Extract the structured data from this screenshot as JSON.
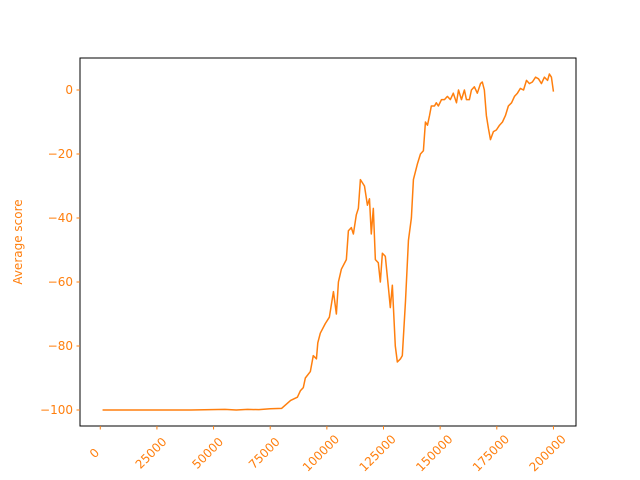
{
  "chart_data": {
    "type": "line",
    "ylabel": "Average score",
    "color": "#ff7f0e",
    "tick_color": "#ff7f0e",
    "x": [
      1000,
      20000,
      40000,
      55000,
      60000,
      65000,
      70000,
      75000,
      80000,
      84000,
      87000,
      88300,
      89600,
      90500,
      92700,
      94000,
      95400,
      96000,
      97100,
      99300,
      101100,
      102000,
      102900,
      104200,
      105100,
      106400,
      108600,
      109500,
      110800,
      111700,
      113000,
      113900,
      114800,
      116600,
      117900,
      118800,
      119600,
      120500,
      121400,
      122700,
      123600,
      124500,
      125800,
      127200,
      128000,
      128900,
      130200,
      131100,
      132500,
      133300,
      134700,
      136000,
      137300,
      138200,
      140000,
      141300,
      142600,
      143500,
      144400,
      145300,
      146100,
      147500,
      148300,
      149200,
      150600,
      151900,
      153200,
      154500,
      155800,
      157200,
      158100,
      159400,
      160700,
      161600,
      162900,
      163800,
      165100,
      166400,
      167800,
      168600,
      169500,
      170400,
      171300,
      172200,
      173500,
      174800,
      176200,
      177500,
      178800,
      180100,
      181500,
      182800,
      184100,
      185400,
      186800,
      188100,
      189400,
      190700,
      192100,
      193400,
      194700,
      196000,
      197400,
      198200,
      199100,
      200000
    ],
    "values": [
      -100,
      -100,
      -100,
      -99.8,
      -100,
      -99.8,
      -99.9,
      -99.6,
      -99.5,
      -97,
      -96,
      -94,
      -93,
      -90,
      -88,
      -83,
      -84,
      -79,
      -76,
      -73,
      -71,
      -67,
      -63,
      -70,
      -60,
      -56,
      -53,
      -44,
      -43,
      -45,
      -39,
      -37,
      -28,
      -30,
      -36,
      -34,
      -45,
      -37,
      -53,
      -54,
      -60,
      -51,
      -52,
      -62,
      -68,
      -61,
      -80,
      -85,
      -84,
      -83,
      -66,
      -47,
      -40,
      -28,
      -23,
      -20,
      -19,
      -10,
      -11,
      -8,
      -5,
      -5,
      -4,
      -5,
      -3,
      -3,
      -2,
      -3,
      -1,
      -4,
      0,
      -3,
      0,
      -3,
      -3,
      0,
      1,
      -1,
      2,
      2.5,
      0,
      -8,
      -12,
      -15.5,
      -13,
      -12.5,
      -11,
      -10,
      -8,
      -5,
      -4,
      -2,
      -1,
      0.5,
      0,
      3,
      2,
      2.5,
      4,
      3.5,
      2,
      4,
      3,
      5,
      4,
      -0.5
    ],
    "xlim": [
      -8950,
      209950
    ],
    "ylim": [
      -105,
      10
    ],
    "xticks": [
      0,
      25000,
      50000,
      75000,
      100000,
      125000,
      150000,
      175000,
      200000
    ],
    "yticks": [
      {
        "value": -100,
        "label": "−100"
      },
      {
        "value": -80,
        "label": "−80"
      },
      {
        "value": -60,
        "label": "−60"
      },
      {
        "value": -40,
        "label": "−40"
      },
      {
        "value": -20,
        "label": "−20"
      },
      0
    ]
  }
}
